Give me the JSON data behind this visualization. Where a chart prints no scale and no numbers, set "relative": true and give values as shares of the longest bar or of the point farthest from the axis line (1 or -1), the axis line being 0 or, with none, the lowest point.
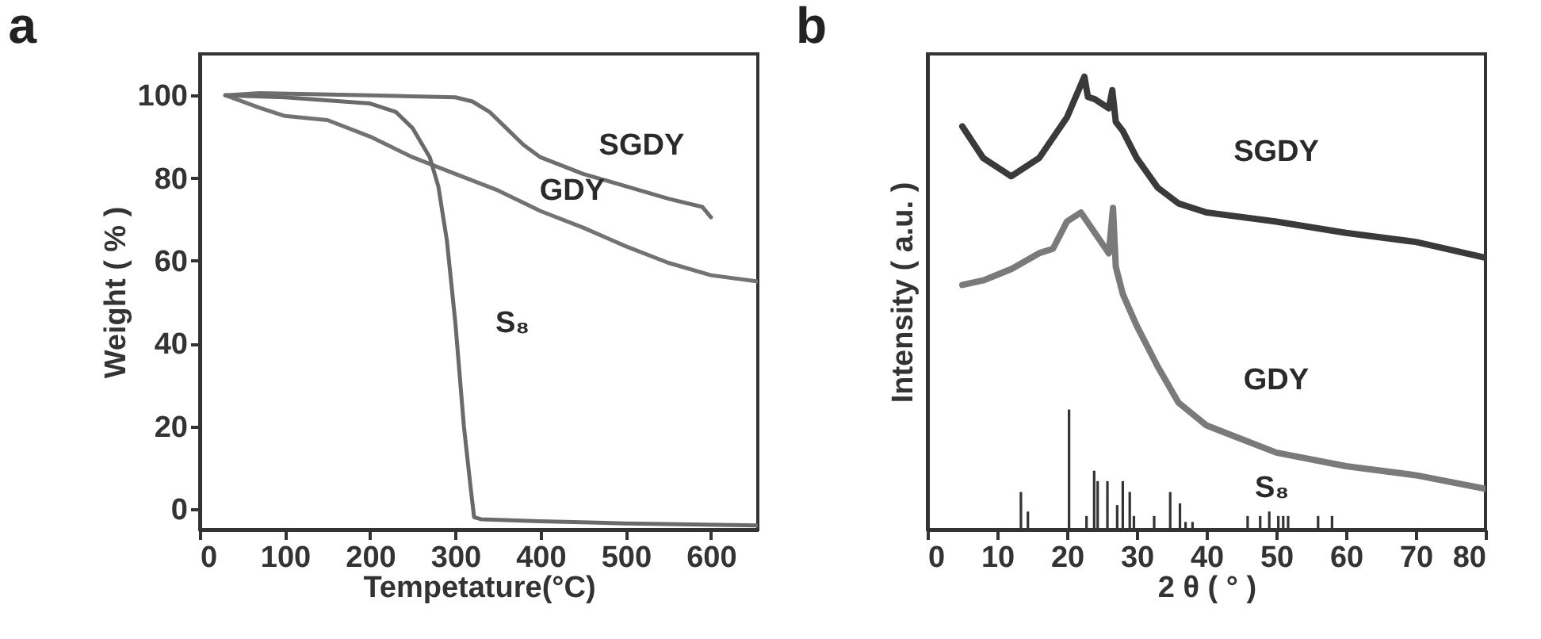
{
  "chart_data": [
    {
      "type": "line",
      "title": "a",
      "xlabel": "Tempetature(°C)",
      "ylabel": "Weight ( % )",
      "xlim": [
        0,
        655
      ],
      "xticks": [
        0,
        100,
        200,
        300,
        400,
        500,
        600
      ],
      "ylim": [
        -5,
        110
      ],
      "yticks": [
        0,
        20,
        40,
        60,
        80,
        100
      ],
      "series": [
        {
          "name": "SGDY",
          "color": "#6e6e6e",
          "x": [
            30,
            70,
            200,
            300,
            320,
            340,
            360,
            380,
            400,
            450,
            500,
            550,
            590,
            600
          ],
          "values": [
            100,
            100.5,
            100,
            99.5,
            98.5,
            96,
            92,
            88,
            85,
            81,
            78,
            75,
            73,
            70.5
          ]
        },
        {
          "name": "GDY",
          "color": "#737373",
          "x": [
            30,
            70,
            100,
            150,
            200,
            250,
            300,
            350,
            400,
            450,
            500,
            550,
            600,
            655
          ],
          "values": [
            100,
            97,
            95,
            94,
            90,
            85,
            81,
            77,
            72,
            68,
            63.5,
            59.5,
            56.5,
            55
          ]
        },
        {
          "name": "S₈",
          "color": "#6a6a6a",
          "x": [
            30,
            100,
            200,
            230,
            250,
            270,
            280,
            290,
            300,
            310,
            318,
            322,
            330,
            400,
            500,
            655
          ],
          "values": [
            100,
            99.5,
            98,
            96,
            92,
            85,
            78,
            65,
            45,
            20,
            5,
            -2,
            -2.5,
            -3,
            -3.5,
            -4
          ]
        }
      ]
    },
    {
      "type": "line",
      "title": "b",
      "xlabel": "2 θ ( ° )",
      "ylabel": "Intensity ( a.u. )",
      "relative": true,
      "xlim": [
        0,
        80
      ],
      "xticks": [
        0,
        10,
        20,
        30,
        40,
        50,
        60,
        70,
        80
      ],
      "series": [
        {
          "name": "SGDY",
          "color": "#3a3a3a",
          "x": [
            5,
            8,
            12,
            16,
            20,
            22.5,
            23,
            24,
            26,
            26.5,
            27,
            28,
            30,
            33,
            36,
            40,
            50,
            60,
            70,
            80
          ],
          "values": [
            0.89,
            0.82,
            0.78,
            0.82,
            0.91,
            1.0,
            0.955,
            0.95,
            0.93,
            0.97,
            0.9,
            0.88,
            0.82,
            0.755,
            0.72,
            0.7,
            0.68,
            0.655,
            0.635,
            0.6
          ]
        },
        {
          "name": "GDY",
          "color": "#7a7a7a",
          "x": [
            5,
            8,
            12,
            16,
            18,
            20,
            22,
            24,
            26,
            26.6,
            27,
            28,
            30,
            33,
            36,
            40,
            45,
            50,
            60,
            70,
            80
          ],
          "values": [
            0.54,
            0.55,
            0.575,
            0.61,
            0.62,
            0.68,
            0.7,
            0.655,
            0.61,
            0.71,
            0.58,
            0.52,
            0.45,
            0.36,
            0.28,
            0.23,
            0.2,
            0.17,
            0.14,
            0.12,
            0.09
          ]
        },
        {
          "name": "S₈",
          "type": "bar",
          "color": "#333333",
          "x": [
            13.4,
            14.4,
            20.3,
            22.8,
            23.9,
            24.4,
            25.8,
            27.2,
            28.0,
            29.0,
            29.6,
            32.5,
            34.8,
            36.2,
            37.0,
            38.0,
            45.9,
            47.7,
            49.0,
            50.3,
            51.0,
            51.7,
            56.0,
            58.0
          ],
          "values": [
            0.083,
            0.04,
            0.265,
            0.03,
            0.13,
            0.107,
            0.107,
            0.054,
            0.107,
            0.083,
            0.03,
            0.03,
            0.083,
            0.058,
            0.017,
            0.017,
            0.03,
            0.03,
            0.04,
            0.03,
            0.03,
            0.03,
            0.03,
            0.03
          ]
        }
      ]
    }
  ]
}
